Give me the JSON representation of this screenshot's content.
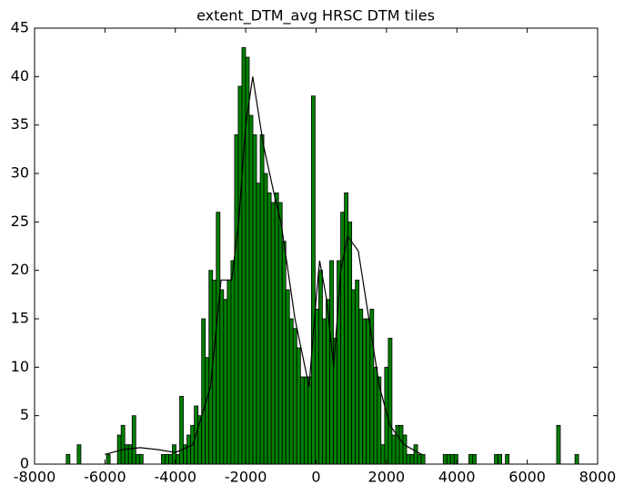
{
  "chart_data": {
    "type": "histogram",
    "title": "extent_DTM_avg HRSC DTM tiles",
    "bins": [
      -7100,
      -6996,
      -6892,
      -6788,
      -6684,
      -6580,
      -6476,
      -6372,
      -6268,
      -6164,
      -6060,
      -5956,
      -5852,
      -5748,
      -5644,
      -5540,
      -5436,
      -5332,
      -5228,
      -5124,
      -5020,
      -4916,
      -4812,
      -4708,
      -4604,
      -4500,
      -4396,
      -4292,
      -4188,
      -4084,
      -3980,
      -3876,
      -3772,
      -3668,
      -3564,
      -3460,
      -3356,
      -3252,
      -3148,
      -3044,
      -2940,
      -2836,
      -2732,
      -2628,
      -2524,
      -2420,
      -2316,
      -2212,
      -2108,
      -2004,
      -1900,
      -1796,
      -1692,
      -1588,
      -1484,
      -1380,
      -1276,
      -1172,
      -1068,
      -964,
      -860,
      -756,
      -652,
      -548,
      -444,
      -340,
      -236,
      -132,
      -28,
      76,
      180,
      284,
      388,
      492,
      596,
      700,
      804,
      908,
      1012,
      1116,
      1220,
      1324,
      1428,
      1532,
      1636,
      1740,
      1844,
      1948,
      2052,
      2156,
      2260,
      2364,
      2468,
      2572,
      2676,
      2780,
      2884,
      2988,
      3092,
      3196,
      3300,
      3404,
      3508,
      3612,
      3716,
      3820,
      3924,
      4028,
      4132,
      4236,
      4340,
      4444,
      4548,
      4652,
      4756,
      4860,
      4964,
      5068,
      5172,
      5276,
      5380,
      5484,
      5588,
      5692,
      5796,
      5900,
      6004,
      6108,
      6212,
      6316,
      6420,
      6524,
      6628,
      6732,
      6836,
      6940,
      7044,
      7148,
      7252,
      7356,
      7460
    ],
    "values": [
      1,
      0,
      0,
      2,
      0,
      0,
      0,
      0,
      0,
      0,
      0,
      1,
      0,
      0,
      3,
      4,
      2,
      2,
      5,
      1,
      1,
      0,
      0,
      0,
      0,
      0,
      1,
      1,
      1,
      2,
      1,
      7,
      2,
      3,
      4,
      6,
      5,
      15,
      11,
      20,
      19,
      26,
      18,
      17,
      19,
      21,
      34,
      39,
      43,
      42,
      36,
      34,
      29,
      34,
      30,
      28,
      27,
      28,
      27,
      23,
      18,
      15,
      14,
      12,
      9,
      9,
      9,
      38,
      16,
      20,
      15,
      17,
      21,
      13,
      21,
      26,
      28,
      25,
      18,
      19,
      16,
      15,
      15,
      16,
      10,
      9,
      2,
      10,
      13,
      3,
      4,
      4,
      3,
      1,
      1,
      2,
      1,
      1,
      0,
      0,
      0,
      0,
      0,
      1,
      1,
      1,
      1,
      0,
      0,
      0,
      1,
      1,
      0,
      0,
      0,
      0,
      0,
      1,
      1,
      0,
      1,
      0,
      0,
      0,
      0,
      0,
      0,
      0,
      0,
      0,
      0,
      0,
      0,
      0,
      4,
      0,
      0,
      0,
      0,
      1
    ],
    "color": "#008000",
    "kde": {
      "x": [
        -6000,
        -5500,
        -5000,
        -4500,
        -4000,
        -3500,
        -3000,
        -2700,
        -2400,
        -2200,
        -2000,
        -1800,
        -1500,
        -1200,
        -1000,
        -600,
        -200,
        0,
        100,
        300,
        500,
        700,
        900,
        1200,
        1500,
        1800,
        2100,
        2500,
        3000
      ],
      "values": [
        1,
        1.5,
        1.7,
        1.5,
        1.2,
        2,
        8,
        19,
        19,
        25,
        35,
        40,
        33,
        28,
        25,
        15,
        8,
        17,
        21,
        17,
        10,
        20,
        23.5,
        22,
        15,
        8,
        4,
        2,
        1
      ],
      "color": "#000000"
    },
    "xlim": [
      -8000,
      8000
    ],
    "xticks": [
      -8000,
      -6000,
      -4000,
      -2000,
      0,
      2000,
      4000,
      6000,
      8000
    ],
    "ylim": [
      0,
      45
    ],
    "yticks": [
      0,
      5,
      10,
      15,
      20,
      25,
      30,
      35,
      40,
      45
    ]
  }
}
